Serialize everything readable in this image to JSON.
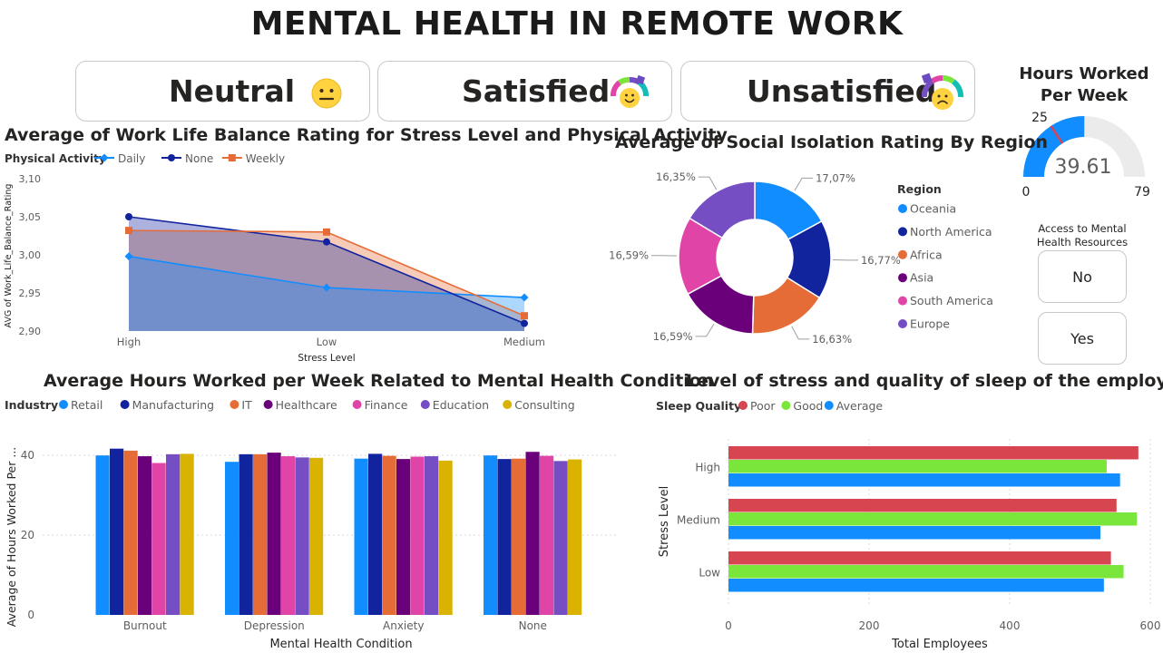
{
  "page_title": "MENTAL HEALTH IN REMOTE WORK",
  "kpis": [
    {
      "label": "Neutral",
      "icon": "neutral-face-icon"
    },
    {
      "label": "Satisfied",
      "icon": "satisfied-gauge-face-icon"
    },
    {
      "label": "Unsatisfied",
      "icon": "unsatisfied-gauge-face-icon"
    }
  ],
  "gauge": {
    "title": "Hours Worked Per Week",
    "value": "39.61",
    "min": "0",
    "max": "79",
    "target": "25",
    "value_num": 39.61,
    "min_num": 0,
    "max_num": 79,
    "target_num": 25,
    "fill_color": "#118DFF",
    "track_color": "#EBEBEB",
    "target_color": "#D64550"
  },
  "slicer": {
    "title": "Access to Mental Health Resources",
    "options": [
      "No",
      "Yes"
    ]
  },
  "chart_data": [
    {
      "type": "area",
      "title": "Average of Work Life Balance Rating for Stress Level and Physical Activity",
      "legend_title": "Physical Activity",
      "xlabel": "Stress Level",
      "ylabel": "AVG of Work_Life_Balance_Rating",
      "categories": [
        "High",
        "Low",
        "Medium"
      ],
      "ylim": [
        2.9,
        3.1
      ],
      "yticks": [
        "3,10",
        "3,05",
        "3,00",
        "2,95",
        "2,90"
      ],
      "series": [
        {
          "name": "Daily",
          "values": [
            2.998,
            2.957,
            2.944
          ],
          "color": "#118DFF",
          "marker": "diamond"
        },
        {
          "name": "None",
          "values": [
            3.05,
            3.017,
            2.91
          ],
          "color": "#12239E",
          "marker": "circle"
        },
        {
          "name": "Weekly",
          "values": [
            3.032,
            3.03,
            2.92
          ],
          "color": "#E66C37",
          "marker": "square"
        }
      ]
    },
    {
      "type": "pie",
      "title": "Average of Social Isolation Rating By Region",
      "legend_title": "Region",
      "labels": [
        "Oceania",
        "North America",
        "Africa",
        "Asia",
        "South America",
        "Europe"
      ],
      "values": [
        17.07,
        16.77,
        16.63,
        16.59,
        16.59,
        16.35
      ],
      "value_labels": [
        "17,07%",
        "16,77%",
        "16,63%",
        "16,59%",
        "16,59%",
        "16,35%"
      ],
      "colors": [
        "#118DFF",
        "#12239E",
        "#E66C37",
        "#6B007B",
        "#E044A7",
        "#744EC2"
      ]
    },
    {
      "type": "bar",
      "title": "Average Hours Worked per Week Related to Mental Health Condition",
      "legend_title": "Industry",
      "xlabel": "Mental Health Condition",
      "ylabel": "Average of Hours Worked Per ...",
      "categories": [
        "Burnout",
        "Depression",
        "Anxiety",
        "None"
      ],
      "ylim": [
        0,
        48
      ],
      "yticks": [
        "40",
        "20",
        "0"
      ],
      "series": [
        {
          "name": "Retail",
          "values": [
            40.0,
            38.4,
            39.2,
            40.0
          ],
          "color": "#118DFF"
        },
        {
          "name": "Manufacturing",
          "values": [
            41.7,
            40.3,
            40.4,
            39.1
          ],
          "color": "#12239E"
        },
        {
          "name": "IT",
          "values": [
            41.2,
            40.3,
            39.9,
            39.2
          ],
          "color": "#E66C37"
        },
        {
          "name": "Healthcare",
          "values": [
            39.8,
            40.7,
            39.1,
            40.9
          ],
          "color": "#6B007B"
        },
        {
          "name": "Finance",
          "values": [
            38.1,
            39.8,
            39.7,
            39.9
          ],
          "color": "#E044A7"
        },
        {
          "name": "Education",
          "values": [
            40.3,
            39.5,
            39.8,
            38.6
          ],
          "color": "#744EC2"
        },
        {
          "name": "Consulting",
          "values": [
            40.4,
            39.4,
            38.7,
            39.0
          ],
          "color": "#D9B300"
        }
      ]
    },
    {
      "type": "bar",
      "orientation": "horizontal",
      "title": "Level of stress and quality of sleep of the employees",
      "legend_title": "Sleep Quality",
      "xlabel": "Total Employees",
      "ylabel": "Stress Level",
      "categories": [
        "High",
        "Medium",
        "Low"
      ],
      "xlim": [
        0,
        600
      ],
      "xticks": [
        "0",
        "200",
        "400",
        "600"
      ],
      "series": [
        {
          "name": "Poor",
          "values": [
            583,
            552,
            544
          ],
          "color": "#D64550"
        },
        {
          "name": "Good",
          "values": [
            538,
            581,
            562
          ],
          "color": "#7AE63C"
        },
        {
          "name": "Average",
          "values": [
            557,
            529,
            534
          ],
          "color": "#118DFF"
        }
      ]
    }
  ]
}
